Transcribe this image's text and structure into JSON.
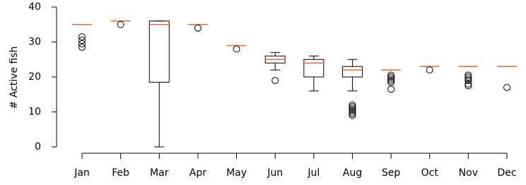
{
  "chart_data": {
    "type": "box",
    "y_label": "# Active fish",
    "categories": [
      "Jan",
      "Feb",
      "Mar",
      "Apr",
      "May",
      "Jun",
      "Jul",
      "Aug",
      "Sep",
      "Oct",
      "Nov",
      "Dec"
    ],
    "boxes": [
      {
        "whislo": 35,
        "q1": 35,
        "median": 35,
        "q3": 35,
        "whishi": 35,
        "fliers": [
          31.5,
          30.5,
          29.5,
          28.5
        ]
      },
      {
        "whislo": 36,
        "q1": 36,
        "median": 36,
        "q3": 36,
        "whishi": 36,
        "fliers": [
          35
        ]
      },
      {
        "whislo": 0,
        "q1": 18.5,
        "median": 35,
        "q3": 36,
        "whishi": 36,
        "fliers": []
      },
      {
        "whislo": 35,
        "q1": 35,
        "median": 35,
        "q3": 35,
        "whishi": 35,
        "fliers": [
          34
        ]
      },
      {
        "whislo": 29,
        "q1": 29,
        "median": 29,
        "q3": 29,
        "whishi": 29,
        "fliers": [
          28
        ]
      },
      {
        "whislo": 22,
        "q1": 24,
        "median": 25,
        "q3": 26,
        "whishi": 27,
        "fliers": [
          19
        ]
      },
      {
        "whislo": 16,
        "q1": 20,
        "median": 24,
        "q3": 25,
        "whishi": 26,
        "fliers": []
      },
      {
        "whislo": 16,
        "q1": 20,
        "median": 22,
        "q3": 23,
        "whishi": 25,
        "fliers": [
          12,
          11.5,
          11,
          10.5,
          10,
          9.5,
          9
        ]
      },
      {
        "whislo": 22,
        "q1": 22,
        "median": 22,
        "q3": 22,
        "whishi": 22,
        "fliers": [
          20.5,
          20,
          19.5,
          19,
          18.5,
          16.5
        ]
      },
      {
        "whislo": 23,
        "q1": 23,
        "median": 23,
        "q3": 23,
        "whishi": 23,
        "fliers": [
          22
        ]
      },
      {
        "whislo": 23,
        "q1": 23,
        "median": 23,
        "q3": 23,
        "whishi": 23,
        "fliers": [
          20.5,
          20,
          19.5,
          19,
          18,
          17.5
        ]
      },
      {
        "whislo": 23,
        "q1": 23,
        "median": 23,
        "q3": 23,
        "whishi": 23,
        "fliers": [
          17
        ]
      }
    ],
    "box_color": "#000000",
    "median_color": "#e8702a",
    "ylim": [
      0,
      40
    ],
    "yticks": [
      0,
      10,
      20,
      30,
      40
    ]
  }
}
